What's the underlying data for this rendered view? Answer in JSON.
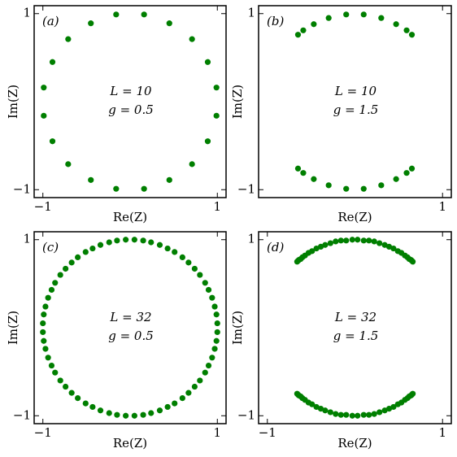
{
  "chart_data": [
    {
      "type": "scatter",
      "panel_label": "(a)",
      "annotations": [
        "L = 10",
        "g = 0.5"
      ],
      "xlabel": "Re(Z)",
      "ylabel": "Im(Z)",
      "color": "#007f00",
      "xlim": [
        -1.1,
        1.1
      ],
      "ylim": [
        -1.09,
        1.09
      ],
      "xticks": [
        {
          "value": -1,
          "label": "−1"
        },
        1
      ],
      "yticks": [
        {
          "value": -1,
          "label": "−1"
        },
        1
      ],
      "x": [
        0.99,
        0.89,
        0.71,
        0.45,
        0.16,
        -0.16,
        -0.45,
        -0.71,
        -0.89,
        -0.99,
        -0.99,
        -0.89,
        -0.71,
        -0.45,
        -0.16,
        0.16,
        0.45,
        0.71,
        0.89,
        0.99
      ],
      "y": [
        0.16,
        0.45,
        0.71,
        0.89,
        0.99,
        0.99,
        0.89,
        0.71,
        0.45,
        0.16,
        -0.16,
        -0.45,
        -0.71,
        -0.89,
        -0.99,
        -0.99,
        -0.89,
        -0.71,
        -0.45,
        -0.16
      ]
    },
    {
      "type": "scatter",
      "panel_label": "(b)",
      "annotations": [
        "L = 10",
        "g = 1.5"
      ],
      "xlabel": "Re(Z)",
      "ylabel": "Im(Z)",
      "color": "#007f00",
      "xlim": [
        -1.1,
        1.1
      ],
      "ylim": [
        -1.09,
        1.09
      ],
      "xticks": [
        1
      ],
      "yticks": [
        {
          "value": -1,
          "label": "−1"
        },
        1
      ],
      "x": [
        -0.65,
        -0.59,
        -0.47,
        -0.3,
        -0.1,
        0.1,
        0.3,
        0.47,
        0.59,
        0.65,
        -0.65,
        -0.59,
        -0.47,
        -0.3,
        -0.1,
        0.1,
        0.3,
        0.47,
        0.59,
        0.65
      ],
      "y": [
        0.76,
        0.81,
        0.88,
        0.95,
        0.99,
        0.99,
        0.95,
        0.88,
        0.81,
        0.76,
        -0.76,
        -0.81,
        -0.88,
        -0.95,
        -0.99,
        -0.99,
        -0.95,
        -0.88,
        -0.81,
        -0.76
      ]
    },
    {
      "type": "scatter",
      "panel_label": "(c)",
      "annotations": [
        "L = 32",
        "g = 0.5"
      ],
      "xlabel": "Re(Z)",
      "ylabel": "Im(Z)",
      "color": "#007f00",
      "xlim": [
        -1.1,
        1.1
      ],
      "ylim": [
        -1.09,
        1.09
      ],
      "xticks": [
        {
          "value": -1,
          "label": "−1"
        },
        1
      ],
      "yticks": [
        {
          "value": -1,
          "label": "−1"
        },
        1
      ],
      "x": [
        1.0,
        0.99,
        0.97,
        0.94,
        0.9,
        0.86,
        0.8,
        0.74,
        0.67,
        0.6,
        0.51,
        0.43,
        0.34,
        0.24,
        0.15,
        0.05,
        -0.05,
        -0.15,
        -0.24,
        -0.34,
        -0.43,
        -0.51,
        -0.6,
        -0.67,
        -0.74,
        -0.8,
        -0.86,
        -0.9,
        -0.94,
        -0.97,
        -0.99,
        -1.0,
        -1.0,
        -0.99,
        -0.97,
        -0.94,
        -0.9,
        -0.86,
        -0.8,
        -0.74,
        -0.67,
        -0.6,
        -0.51,
        -0.43,
        -0.34,
        -0.24,
        -0.15,
        -0.05,
        0.05,
        0.15,
        0.24,
        0.34,
        0.43,
        0.51,
        0.6,
        0.67,
        0.74,
        0.8,
        0.86,
        0.9,
        0.94,
        0.97,
        0.99,
        1.0
      ],
      "y": [
        0.05,
        0.15,
        0.24,
        0.34,
        0.43,
        0.51,
        0.6,
        0.67,
        0.74,
        0.8,
        0.86,
        0.9,
        0.94,
        0.97,
        0.99,
        1.0,
        1.0,
        0.99,
        0.97,
        0.94,
        0.9,
        0.86,
        0.8,
        0.74,
        0.67,
        0.6,
        0.51,
        0.43,
        0.34,
        0.24,
        0.15,
        0.05,
        -0.05,
        -0.15,
        -0.24,
        -0.34,
        -0.43,
        -0.51,
        -0.6,
        -0.67,
        -0.74,
        -0.8,
        -0.86,
        -0.9,
        -0.94,
        -0.97,
        -0.99,
        -1.0,
        -1.0,
        -0.99,
        -0.97,
        -0.94,
        -0.9,
        -0.86,
        -0.8,
        -0.74,
        -0.67,
        -0.6,
        -0.51,
        -0.43,
        -0.34,
        -0.24,
        -0.15,
        -0.05
      ]
    },
    {
      "type": "scatter",
      "panel_label": "(d)",
      "annotations": [
        "L = 32",
        "g = 1.5"
      ],
      "xlabel": "Re(Z)",
      "ylabel": "Im(Z)",
      "color": "#007f00",
      "xlim": [
        -1.1,
        1.1
      ],
      "ylim": [
        -1.09,
        1.09
      ],
      "xticks": [
        {
          "value": -1,
          "label": "−1"
        },
        1
      ],
      "yticks": [
        {
          "value": -1,
          "label": "−1"
        },
        1
      ],
      "x": [
        -0.66,
        -0.65,
        -0.64,
        -0.62,
        -0.6,
        -0.57,
        -0.53,
        -0.49,
        -0.44,
        -0.39,
        -0.34,
        -0.28,
        -0.22,
        -0.16,
        -0.1,
        -0.03,
        0.03,
        0.1,
        0.16,
        0.22,
        0.28,
        0.34,
        0.39,
        0.44,
        0.49,
        0.53,
        0.57,
        0.6,
        0.62,
        0.64,
        0.65,
        0.66,
        -0.66,
        -0.65,
        -0.64,
        -0.62,
        -0.6,
        -0.57,
        -0.53,
        -0.49,
        -0.44,
        -0.39,
        -0.34,
        -0.28,
        -0.22,
        -0.16,
        -0.1,
        -0.03,
        0.03,
        0.1,
        0.16,
        0.22,
        0.28,
        0.34,
        0.39,
        0.44,
        0.49,
        0.53,
        0.57,
        0.6,
        0.62,
        0.64,
        0.65,
        0.66
      ],
      "y": [
        0.75,
        0.76,
        0.77,
        0.78,
        0.8,
        0.82,
        0.85,
        0.87,
        0.9,
        0.92,
        0.94,
        0.96,
        0.98,
        0.99,
        0.99,
        1.0,
        1.0,
        0.99,
        0.99,
        0.98,
        0.96,
        0.94,
        0.92,
        0.9,
        0.87,
        0.85,
        0.82,
        0.8,
        0.78,
        0.77,
        0.76,
        0.75,
        -0.75,
        -0.76,
        -0.77,
        -0.78,
        -0.8,
        -0.82,
        -0.85,
        -0.87,
        -0.9,
        -0.92,
        -0.94,
        -0.96,
        -0.98,
        -0.99,
        -0.99,
        -1.0,
        -1.0,
        -0.99,
        -0.99,
        -0.98,
        -0.96,
        -0.94,
        -0.92,
        -0.9,
        -0.87,
        -0.85,
        -0.82,
        -0.8,
        -0.78,
        -0.77,
        -0.76,
        -0.75
      ]
    }
  ]
}
